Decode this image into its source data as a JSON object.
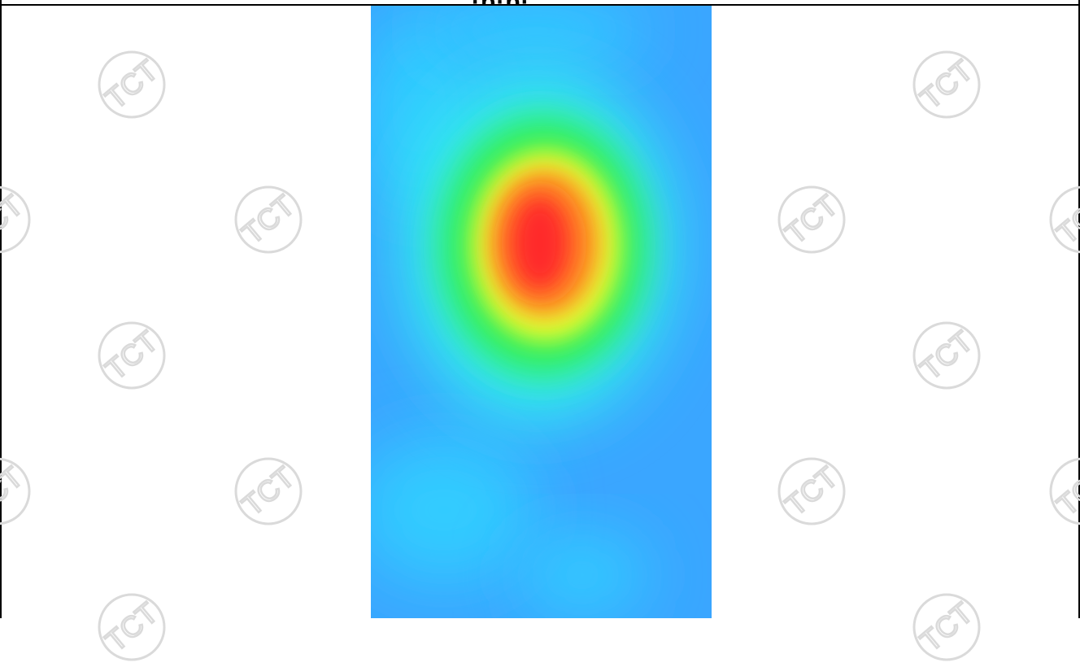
{
  "page": {
    "title_fragment": "·p·p·"
  },
  "watermark": {
    "text": "TCT",
    "color": "#dadada"
  },
  "heatmap": {
    "icon": "thermal-heatmap-image",
    "colors": {
      "background": "#3aa6ff",
      "cyan": "#33d6ff",
      "aqua": "#33ffe0",
      "green": "#33ee44",
      "yellow": "#e6ff33",
      "orange": "#ff8822",
      "red": "#ff2a2a"
    }
  }
}
